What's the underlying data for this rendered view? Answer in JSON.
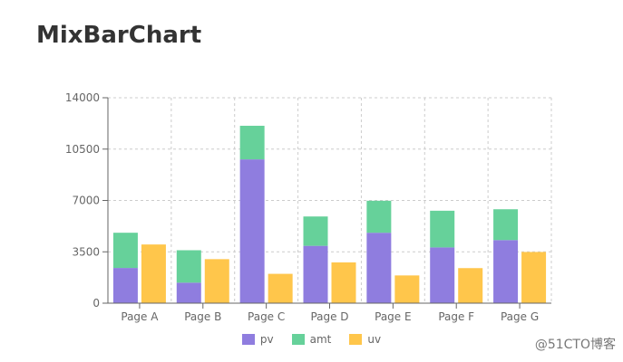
{
  "title": "MixBarChart",
  "watermark": "@51CTO博客",
  "colors": {
    "pv": "#8f7ddf",
    "amt": "#66d19a",
    "uv": "#ffc64b"
  },
  "chart_data": {
    "type": "bar",
    "title": "MixBarChart",
    "categories": [
      "Page A",
      "Page B",
      "Page C",
      "Page D",
      "Page E",
      "Page F",
      "Page G"
    ],
    "series": [
      {
        "name": "pv",
        "stack": "a",
        "values": [
          2400,
          1398,
          9800,
          3908,
          4800,
          3800,
          4300
        ]
      },
      {
        "name": "amt",
        "stack": "a",
        "values": [
          2400,
          2210,
          2290,
          2000,
          2181,
          2500,
          2100
        ]
      },
      {
        "name": "uv",
        "stack": "b",
        "values": [
          4000,
          3000,
          2000,
          2780,
          1890,
          2390,
          3490
        ]
      }
    ],
    "yticks": [
      0,
      3500,
      7000,
      10500,
      14000
    ],
    "ylim": [
      0,
      14000
    ],
    "grid": true,
    "legend": "bottom-center"
  }
}
